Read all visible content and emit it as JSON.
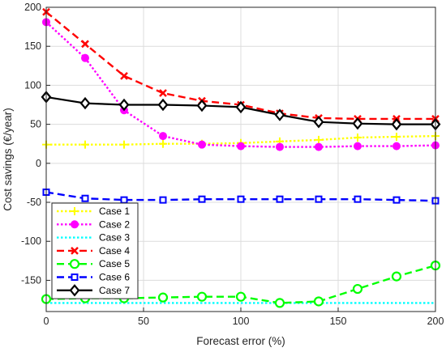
{
  "chart_data": {
    "type": "line",
    "xlabel": "Forecast error (%)",
    "ylabel": "Cost savings (€/year)",
    "xlim": [
      0,
      200
    ],
    "ylim": [
      -190,
      200
    ],
    "xticks": [
      0,
      50,
      100,
      150,
      200
    ],
    "yticks": [
      200,
      150,
      100,
      50,
      0,
      -50,
      -100,
      -150
    ],
    "grid": true,
    "legend_position": "lower-left",
    "x": [
      0,
      20,
      40,
      60,
      80,
      100,
      120,
      140,
      160,
      180,
      200
    ],
    "series": [
      {
        "name": "Case 1",
        "color": "#ffff00",
        "line": "dotted",
        "marker": "plus",
        "values": [
          24,
          24,
          24,
          25,
          25,
          26,
          28,
          30,
          33,
          34,
          35
        ]
      },
      {
        "name": "Case 2",
        "color": "#ff00ff",
        "line": "dotted",
        "marker": "circle-filled",
        "values": [
          181,
          135,
          68,
          35,
          24,
          22,
          21,
          21,
          22,
          22,
          23
        ]
      },
      {
        "name": "Case 3",
        "color": "#00ffff",
        "line": "dotted",
        "marker": "none",
        "values": [
          -179,
          -179,
          -179,
          -179,
          -179,
          -179,
          -179,
          -179,
          -179,
          -179,
          -179
        ]
      },
      {
        "name": "Case 4",
        "color": "#ff0000",
        "line": "dashed",
        "marker": "x",
        "values": [
          194,
          153,
          112,
          90,
          80,
          75,
          64,
          58,
          57,
          57,
          57
        ]
      },
      {
        "name": "Case 5",
        "color": "#00ff00",
        "line": "dashed",
        "marker": "circle-open",
        "values": [
          -174,
          -173,
          -173,
          -172,
          -171,
          -171,
          -179,
          -177,
          -161,
          -145,
          -131
        ]
      },
      {
        "name": "Case 6",
        "color": "#0000ff",
        "line": "dashed",
        "marker": "square-open",
        "values": [
          -37,
          -45,
          -47,
          -47,
          -46,
          -46,
          -46,
          -46,
          -46,
          -47,
          -48
        ]
      },
      {
        "name": "Case 7",
        "color": "#000000",
        "line": "solid",
        "marker": "diamond-open",
        "values": [
          85,
          77,
          75,
          75,
          74,
          72,
          62,
          53,
          51,
          50,
          50
        ]
      }
    ]
  }
}
